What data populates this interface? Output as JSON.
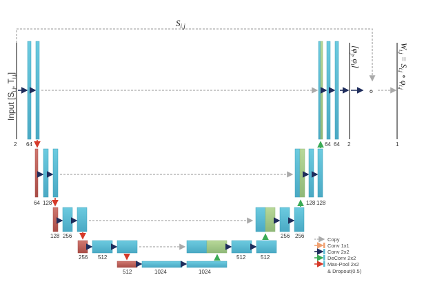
{
  "colors": {
    "feature": "#5bbcd4",
    "feature_dark": "#3a9fb8",
    "copy_feature": "#a6c98a",
    "pool_block": "#c0645c",
    "arrow_conv": "#1f2d5c",
    "arrow_pool": "#d63a2a",
    "arrow_deconv": "#3aaa55",
    "arrow_copy": "#aaaaaa",
    "arrow_conv1x1": "#f0a070"
  },
  "labels": {
    "skip_top": "S",
    "skip_top_sub": "i,j",
    "input": "Input [S",
    "input_sub1": "i,j",
    "input_mid": ", T",
    "input_sub2": "i,j",
    "input_end": "]",
    "phi": "[φ",
    "phi_sub1": "j",
    "phi_mid": ", φ",
    "phi_sub2": "i",
    "phi_end": "]",
    "compose": "∘",
    "output": "W",
    "output_sub": "i,j",
    "output_eq": " = S",
    "output_sub2": "i,j",
    "output_circ": " ∘ φ",
    "output_sub3": "i,j"
  },
  "dims": {
    "in_ch": "2",
    "l1a": "64",
    "l2a": "64",
    "l2b": "128",
    "l3a": "128",
    "l3b": "256",
    "l4a": "256",
    "l4b": "512",
    "bot_pool": "512",
    "bot1": "1024",
    "bot2": "1024",
    "u4a": "512",
    "u4b": "512",
    "u3a": "256",
    "u3b": "256",
    "u2a": "128",
    "u2b": "128",
    "u1a": "64",
    "u1b": "64",
    "out_ch": "2",
    "final_ch": "1"
  },
  "legend": [
    {
      "key": "copy",
      "label": "Copy"
    },
    {
      "key": "conv1x1",
      "label": "Conv 1x1"
    },
    {
      "key": "conv",
      "label": "Conv 2x2"
    },
    {
      "key": "deconv",
      "label": "DeConv 2x2"
    },
    {
      "key": "pool",
      "label": "Max-Pool 2x2"
    },
    {
      "key": "dropout",
      "label": "& Dropout(0.5)"
    }
  ]
}
